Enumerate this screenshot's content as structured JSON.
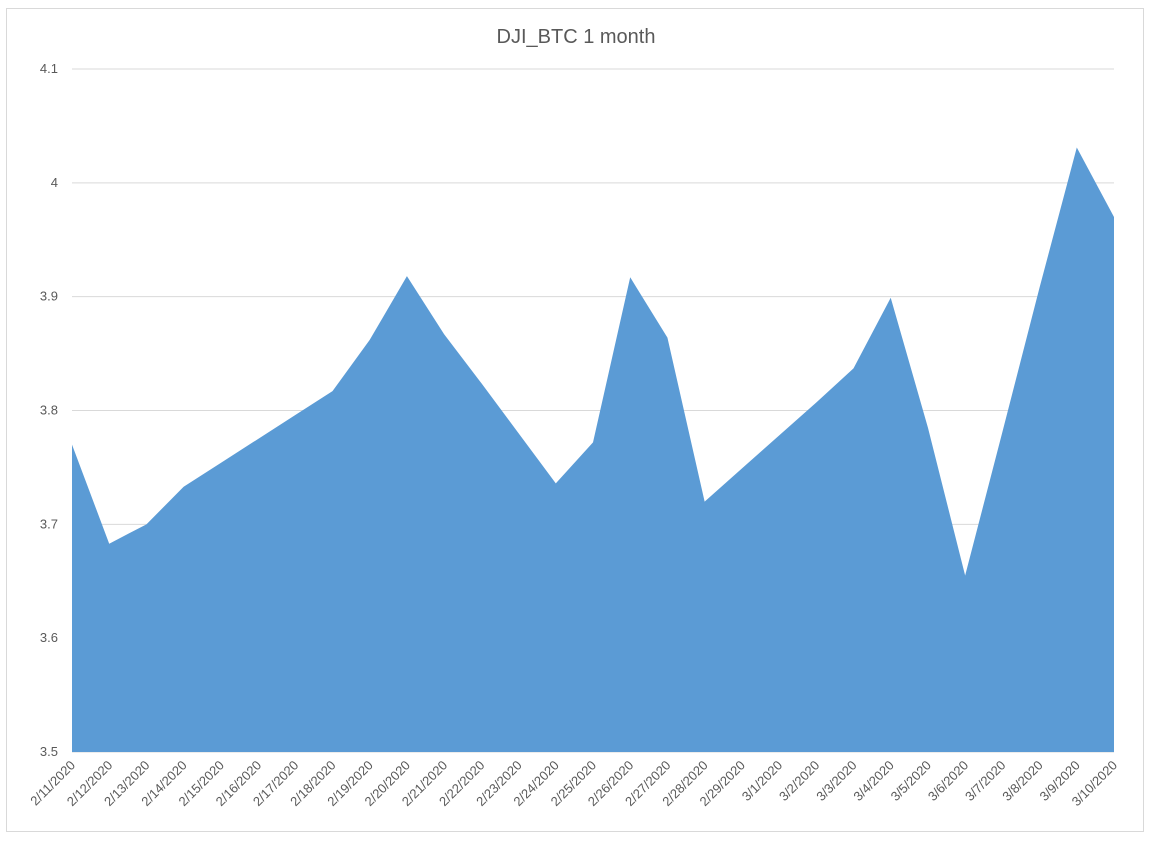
{
  "chart_data": {
    "type": "area",
    "title": "DJI_BTC 1 month",
    "xlabel": "",
    "ylabel": "",
    "ylim": [
      3.5,
      4.1
    ],
    "yticks": [
      "3.5",
      "3.6",
      "3.7",
      "3.8",
      "3.9",
      "4",
      "4.1"
    ],
    "grid": true,
    "legend": "none",
    "color": "#5b9bd5",
    "categories": [
      "2/11/2020",
      "2/12/2020",
      "2/13/2020",
      "2/14/2020",
      "2/15/2020",
      "2/16/2020",
      "2/17/2020",
      "2/18/2020",
      "2/19/2020",
      "2/20/2020",
      "2/21/2020",
      "2/22/2020",
      "2/23/2020",
      "2/24/2020",
      "2/25/2020",
      "2/26/2020",
      "2/27/2020",
      "2/28/2020",
      "2/29/2020",
      "3/1/2020",
      "3/2/2020",
      "3/3/2020",
      "3/4/2020",
      "3/5/2020",
      "3/6/2020",
      "3/7/2020",
      "3/8/2020",
      "3/9/2020",
      "3/10/2020"
    ],
    "values": [
      3.77,
      3.683,
      3.7,
      3.733,
      3.754,
      3.775,
      3.796,
      3.817,
      3.862,
      3.918,
      3.867,
      3.824,
      3.78,
      3.736,
      3.772,
      3.917,
      3.864,
      3.72,
      3.749,
      3.778,
      3.807,
      3.837,
      3.899,
      3.785,
      3.655,
      3.781,
      3.908,
      4.031,
      3.97
    ]
  }
}
